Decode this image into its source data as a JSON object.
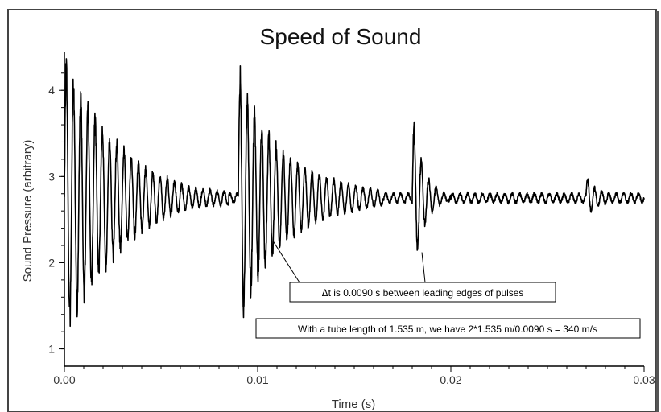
{
  "chart_data": {
    "type": "line",
    "title": "Speed of Sound",
    "xlabel": "Time (s)",
    "ylabel": "Sound Pressure (arbitrary)",
    "xlim": [
      0,
      0.03
    ],
    "ylim": [
      0.8,
      4.45
    ],
    "grid": false,
    "x_ticks": [
      {
        "value": 0.0,
        "label": "0.00"
      },
      {
        "value": 0.01,
        "label": "0.01"
      },
      {
        "value": 0.02,
        "label": "0.02"
      },
      {
        "value": 0.03,
        "label": "0.03"
      }
    ],
    "y_ticks": [
      {
        "value": 1,
        "label": "1"
      },
      {
        "value": 2,
        "label": "2"
      },
      {
        "value": 3,
        "label": "3"
      },
      {
        "value": 4,
        "label": "4"
      }
    ],
    "series": [
      {
        "baseline": 2.75,
        "pulses": [
          {
            "t_start": 0.0,
            "peak_amplitude": 1.7,
            "decay_time": 0.003,
            "freq_hz": 2600,
            "duration": 0.0085
          },
          {
            "t_start": 0.009,
            "peak_amplitude": 1.65,
            "decay_time": 0.0022,
            "freq_hz": 2600,
            "duration": 0.0075
          },
          {
            "t_start": 0.018,
            "peak_amplitude": 1.05,
            "decay_time": 0.0006,
            "freq_hz": 2600,
            "duration": 0.002
          },
          {
            "t_start": 0.027,
            "peak_amplitude": 0.28,
            "decay_time": 0.0004,
            "freq_hz": 2600,
            "duration": 0.0012
          }
        ],
        "color": "#000000"
      }
    ],
    "annotations": [
      {
        "text": "Δt is 0.0090 s between leading edges of pulses",
        "box": "mid-center",
        "pointers": [
          {
            "x": 0.0108,
            "y": 2.25
          },
          {
            "x": 0.0185,
            "y": 2.12
          }
        ]
      },
      {
        "text": "With a tube length of 1.535 m, we have 2*1.535 m/0.0090 s = 340 m/s",
        "box": "lower-right"
      }
    ]
  }
}
